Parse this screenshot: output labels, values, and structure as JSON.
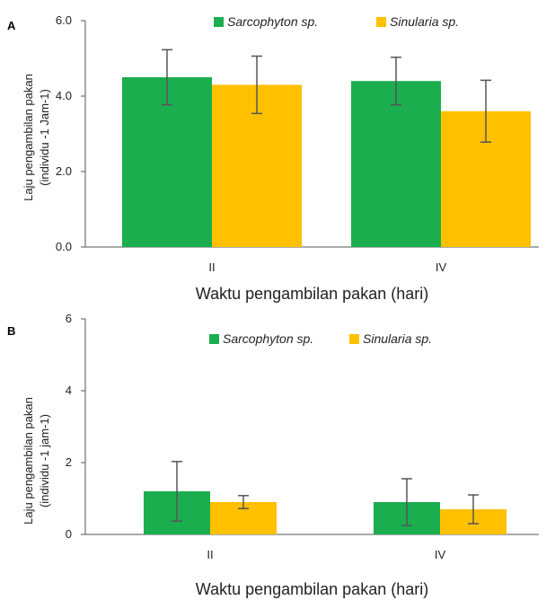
{
  "colors": {
    "series1": "#1aae4f",
    "series2": "#ffc000",
    "axis": "#555555",
    "error": "#555555"
  },
  "chart_data": [
    {
      "panel": "A",
      "type": "bar",
      "categories": [
        "II",
        "IV"
      ],
      "ylim": [
        0,
        6
      ],
      "yticks": [
        "0.0",
        "2.0",
        "4.0",
        "6.0"
      ],
      "xlabel": "Waktu pengambilan pakan (hari)",
      "ylabel": [
        "Laju pengambilan pakan",
        "(individu -1 Jam-1)"
      ],
      "legend_position": "top",
      "series": [
        {
          "name": "Sarcophyton sp.",
          "values": [
            4.5,
            4.4
          ],
          "errors": [
            0.73,
            0.63
          ]
        },
        {
          "name": "Sinularia sp.",
          "values": [
            4.3,
            3.6
          ],
          "errors": [
            0.76,
            0.82
          ]
        }
      ]
    },
    {
      "panel": "B",
      "type": "bar",
      "categories": [
        "II",
        "IV"
      ],
      "ylim": [
        0,
        6
      ],
      "yticks": [
        "0",
        "2",
        "4",
        "6"
      ],
      "xlabel": "Waktu pengambilan pakan (hari)",
      "ylabel": [
        "Laju pengambilan pakan",
        "(individu -1 jam-1)"
      ],
      "legend_position": "top",
      "series": [
        {
          "name": "Sarcophyton sp.",
          "values": [
            1.2,
            0.9
          ],
          "errors": [
            0.83,
            0.65
          ]
        },
        {
          "name": "Sinularia sp.",
          "values": [
            0.9,
            0.7
          ],
          "errors": [
            0.18,
            0.4
          ]
        }
      ]
    }
  ]
}
